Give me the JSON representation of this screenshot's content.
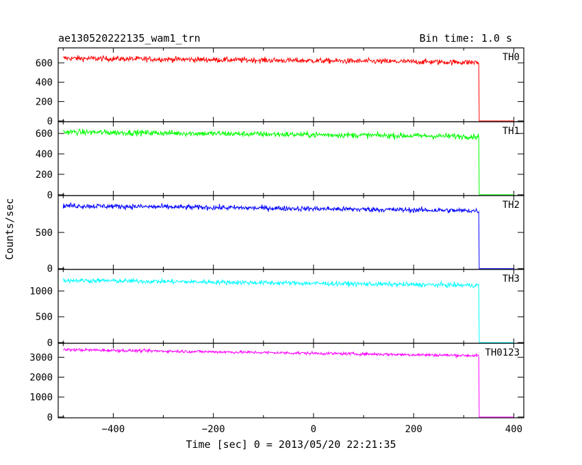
{
  "title_left": "ae130520222135_wam1_trn",
  "title_right": "Bin time: 1.0 s",
  "ylabel": "Counts/sec",
  "xlabel": "Time [sec] 0 = 2013/05/20 22:21:35",
  "chart_data": {
    "type": "line",
    "xlim": [
      -510,
      420
    ],
    "x_ticks": [
      -400,
      -200,
      0,
      200,
      400
    ],
    "x_tick_labels": [
      "−400",
      "−200",
      "0",
      "200",
      "400"
    ],
    "step_time": 330,
    "end_time": 400,
    "start_time": -500,
    "panels": [
      {
        "name": "TH0",
        "color": "#ff0000",
        "ylim": [
          -8,
          755
        ],
        "y_ticks": [
          0,
          200,
          400,
          600
        ],
        "y_tick_labels": [
          "0",
          "200",
          "400",
          "600"
        ],
        "level_start": 648,
        "level_end": 605,
        "noise": 28,
        "level_after": 0
      },
      {
        "name": "TH1",
        "color": "#00ff00",
        "ylim": [
          -8,
          715
        ],
        "y_ticks": [
          0,
          200,
          400,
          600
        ],
        "y_tick_labels": [
          "0",
          "200",
          "400",
          "600"
        ],
        "level_start": 615,
        "level_end": 570,
        "noise": 28,
        "level_after": 0
      },
      {
        "name": "TH2",
        "color": "#0000ff",
        "ylim": [
          -12,
          1010
        ],
        "y_ticks": [
          0,
          500
        ],
        "y_tick_labels": [
          "0",
          "500"
        ],
        "level_start": 870,
        "level_end": 800,
        "noise": 35,
        "level_after": 0
      },
      {
        "name": "TH3",
        "color": "#00ffff",
        "ylim": [
          -15,
          1420
        ],
        "y_ticks": [
          0,
          500,
          1000
        ],
        "y_tick_labels": [
          "0",
          "500",
          "1000"
        ],
        "level_start": 1210,
        "level_end": 1110,
        "noise": 45,
        "level_after": 0
      },
      {
        "name": "TH0123",
        "color": "#ff00ff",
        "ylim": [
          -40,
          3700
        ],
        "y_ticks": [
          0,
          1000,
          2000,
          3000
        ],
        "y_tick_labels": [
          "0",
          "1000",
          "2000",
          "3000"
        ],
        "level_start": 3380,
        "level_end": 3080,
        "noise": 75,
        "level_after": 0
      }
    ]
  }
}
